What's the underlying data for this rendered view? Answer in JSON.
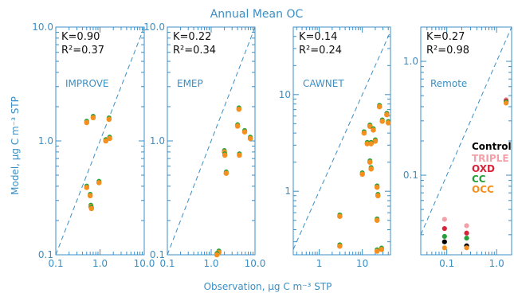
{
  "title": "Annual Mean OC",
  "ylabel": "Model, μg C m⁻³ STP",
  "xlabel": "Observation, μg C m⁻³ STP",
  "colors": {
    "axis": "#3b8fc4",
    "text": "#111111",
    "Control": "#000000",
    "TRIPLE": "#f4a0a8",
    "OXD": "#d8233a",
    "CC": "#23a03a",
    "OCC": "#f39020"
  },
  "legend": [
    {
      "name": "Control",
      "color": "#000000"
    },
    {
      "name": "TRIPLE",
      "color": "#f4a0a8"
    },
    {
      "name": "OXD",
      "color": "#d8233a"
    },
    {
      "name": "CC",
      "color": "#23a03a"
    },
    {
      "name": "OCC",
      "color": "#f39020"
    }
  ],
  "chart_data": [
    {
      "type": "scatter",
      "panel": "IMPROVE",
      "xscale": "log",
      "yscale": "log",
      "xlim": [
        0.1,
        10.0
      ],
      "ylim": [
        0.1,
        10.0
      ],
      "xticks": [
        "0.1",
        "1.0",
        "10.0"
      ],
      "yticks": [
        "0.1",
        "1.0",
        "10.0"
      ],
      "K": "K=0.90",
      "R2": "R²=0.37",
      "points": [
        [
          0.5,
          1.45
        ],
        [
          0.7,
          1.6
        ],
        [
          1.6,
          1.55
        ],
        [
          1.35,
          1.0
        ],
        [
          1.65,
          1.05
        ],
        [
          0.5,
          0.39
        ],
        [
          0.6,
          0.33
        ],
        [
          0.95,
          0.43
        ],
        [
          0.62,
          0.265
        ],
        [
          0.64,
          0.255
        ]
      ]
    },
    {
      "type": "scatter",
      "panel": "EMEP",
      "xscale": "log",
      "yscale": "log",
      "xlim": [
        0.1,
        10.0
      ],
      "ylim": [
        0.1,
        10.0
      ],
      "xticks": [
        "0.1",
        "1.0",
        "10.0"
      ],
      "yticks": [
        "0.1",
        "1.0",
        "10.0"
      ],
      "K": "K=0.22",
      "R2": "R²=0.34",
      "points": [
        [
          4.3,
          1.9
        ],
        [
          4.0,
          1.35
        ],
        [
          5.8,
          1.2
        ],
        [
          7.8,
          1.05
        ],
        [
          2.0,
          0.8
        ],
        [
          2.05,
          0.75
        ],
        [
          4.4,
          0.75
        ],
        [
          2.2,
          0.52
        ],
        [
          1.5,
          0.105
        ],
        [
          1.35,
          0.1
        ]
      ]
    },
    {
      "type": "scatter",
      "panel": "CAWNET",
      "xscale": "log",
      "yscale": "log",
      "xlim": [
        0.25,
        45
      ],
      "ylim": [
        0.22,
        50
      ],
      "xticks": [
        "1",
        "10"
      ],
      "yticks": [
        "1",
        "10"
      ],
      "K": "K=0.14",
      "R2": "R²=0.24",
      "points": [
        [
          25,
          7.5
        ],
        [
          37,
          6.2
        ],
        [
          29,
          5.3
        ],
        [
          40,
          5.1
        ],
        [
          15,
          4.7
        ],
        [
          18,
          4.3
        ],
        [
          11,
          4.0
        ],
        [
          20,
          3.3
        ],
        [
          13,
          3.1
        ],
        [
          16,
          3.1
        ],
        [
          15,
          2.0
        ],
        [
          16,
          1.7
        ],
        [
          10,
          1.5
        ],
        [
          22,
          1.1
        ],
        [
          23,
          0.9
        ],
        [
          3,
          0.55
        ],
        [
          22,
          0.5
        ],
        [
          3,
          0.27
        ],
        [
          28,
          0.25
        ],
        [
          22,
          0.24
        ]
      ]
    },
    {
      "type": "scatter",
      "panel": "Remote",
      "xscale": "log",
      "yscale": "log",
      "xlim": [
        0.03,
        2.0
      ],
      "ylim": [
        0.02,
        2.0
      ],
      "xticks": [
        "0.1",
        "1.0"
      ],
      "yticks": [
        "0.1",
        "1.0"
      ],
      "K": "K=0.27",
      "R2": "R²=0.98",
      "series": [
        {
          "name": "Control",
          "color": "#000000",
          "points": [
            [
              0.09,
              0.026
            ],
            [
              0.25,
              0.024
            ],
            [
              1.55,
              0.44
            ]
          ]
        },
        {
          "name": "TRIPLE",
          "color": "#f4a0a8",
          "points": [
            [
              0.09,
              0.041
            ],
            [
              0.25,
              0.036
            ],
            [
              1.55,
              0.46
            ]
          ]
        },
        {
          "name": "OXD",
          "color": "#d8233a",
          "points": [
            [
              0.09,
              0.034
            ],
            [
              0.25,
              0.031
            ],
            [
              1.55,
              0.45
            ]
          ]
        },
        {
          "name": "CC",
          "color": "#23a03a",
          "points": [
            [
              0.09,
              0.029
            ],
            [
              0.25,
              0.028
            ],
            [
              1.55,
              0.44
            ]
          ]
        },
        {
          "name": "OCC",
          "color": "#f39020",
          "points": [
            [
              0.09,
              0.023
            ],
            [
              0.25,
              0.023
            ],
            [
              1.55,
              0.43
            ]
          ]
        }
      ]
    }
  ]
}
